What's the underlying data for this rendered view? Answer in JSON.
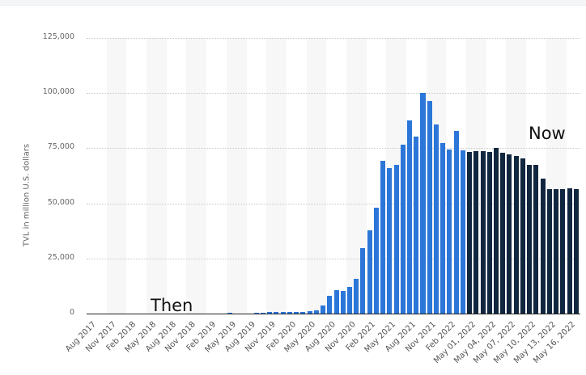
{
  "chart_data": {
    "type": "bar",
    "title": "",
    "xlabel": "",
    "ylabel": "TVL in million U.S. dollars",
    "ylim": [
      0,
      125000
    ],
    "yticks": [
      "0",
      "25,000",
      "50,000",
      "75,000",
      "100,000",
      "125,000"
    ],
    "grid": true,
    "legend": null,
    "annotations": [
      {
        "text": "Then",
        "position": "lower-left"
      },
      {
        "text": "Now",
        "position": "upper-right"
      }
    ],
    "colors": {
      "then": "#2b76d8",
      "now": "#11263f"
    },
    "xtick_labels": [
      "Aug 2017",
      "Nov 2017",
      "Feb 2018",
      "May 2018",
      "Aug 2018",
      "Nov 2018",
      "Feb 2019",
      "May 2019",
      "Aug 2019",
      "Nov 2019",
      "Feb 2020",
      "May 2020",
      "Aug 2020",
      "Nov 2020",
      "Feb 2021",
      "May 2021",
      "Aug 2021",
      "Nov 2021",
      "Feb 2022",
      "May 01, 2022",
      "May 04, 2022",
      "May 07, 2022",
      "May 10, 2022",
      "May 13, 2022",
      "May 16, 2022"
    ],
    "series": [
      {
        "name": "Monthly (Then)",
        "categories": [
          "Aug 2017",
          "Sep 2017",
          "Oct 2017",
          "Nov 2017",
          "Dec 2017",
          "Jan 2018",
          "Feb 2018",
          "Mar 2018",
          "Apr 2018",
          "May 2018",
          "Jun 2018",
          "Jul 2018",
          "Aug 2018",
          "Sep 2018",
          "Oct 2018",
          "Nov 2018",
          "Dec 2018",
          "Jan 2019",
          "Feb 2019",
          "Mar 2019",
          "Apr 2019",
          "May 2019",
          "Jun 2019",
          "Jul 2019",
          "Aug 2019",
          "Sep 2019",
          "Oct 2019",
          "Nov 2019",
          "Dec 2019",
          "Jan 2020",
          "Feb 2020",
          "Mar 2020",
          "Apr 2020",
          "May 2020",
          "Jun 2020",
          "Jul 2020",
          "Aug 2020",
          "Sep 2020",
          "Oct 2020",
          "Nov 2020",
          "Dec 2020",
          "Jan 2021",
          "Feb 2021",
          "Mar 2021",
          "Apr 2021",
          "May 2021",
          "Jun 2021",
          "Jul 2021",
          "Aug 2021",
          "Sep 2021",
          "Oct 2021",
          "Nov 2021",
          "Dec 2021",
          "Jan 2022",
          "Feb 2022",
          "Mar 2022",
          "Apr 2022"
        ],
        "values": [
          0,
          0,
          0,
          0,
          0,
          0,
          0,
          0,
          0,
          0,
          0,
          0,
          0,
          0,
          0,
          0,
          0,
          0,
          0,
          0,
          0,
          400,
          0,
          0,
          0,
          500,
          500,
          600,
          700,
          700,
          900,
          600,
          900,
          1000,
          1500,
          3800,
          8200,
          10800,
          10200,
          12200,
          15600,
          29800,
          37700,
          48000,
          69300,
          66000,
          67400,
          76500,
          87600,
          80200,
          100100,
          96300,
          85800,
          77400,
          74300,
          82800,
          74200
        ]
      },
      {
        "name": "Daily May 2022 (Now)",
        "categories": [
          "May 01, 2022",
          "May 02, 2022",
          "May 03, 2022",
          "May 04, 2022",
          "May 05, 2022",
          "May 06, 2022",
          "May 07, 2022",
          "May 08, 2022",
          "May 09, 2022",
          "May 10, 2022",
          "May 11, 2022",
          "May 12, 2022",
          "May 13, 2022",
          "May 14, 2022",
          "May 15, 2022",
          "May 16, 2022",
          "May 17, 2022"
        ],
        "values": [
          73200,
          73700,
          73700,
          73300,
          75100,
          73100,
          72100,
          71300,
          70400,
          67300,
          67400,
          61200,
          56500,
          56500,
          56500,
          56900,
          56500
        ]
      }
    ]
  }
}
